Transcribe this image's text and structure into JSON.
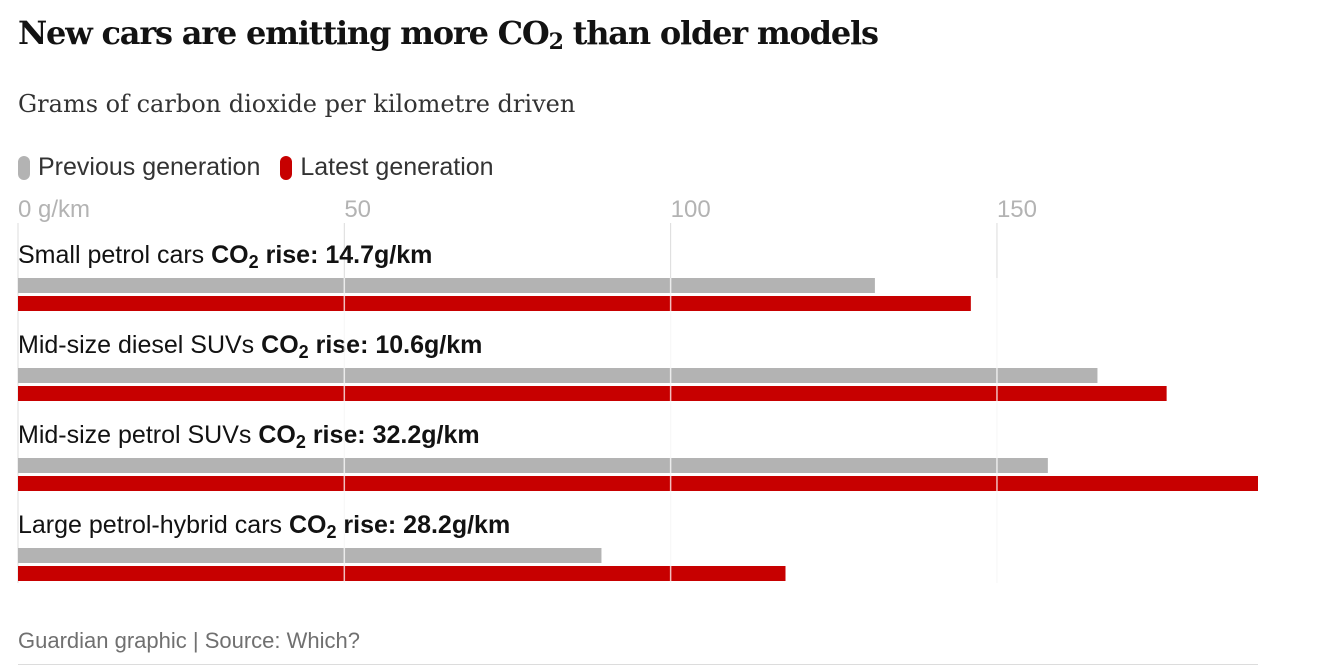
{
  "header": {
    "title_main": "New cars are emitting more CO",
    "title_sub": "2",
    "title_tail": " than older models",
    "subtitle": "Grams of carbon dioxide per kilometre driven"
  },
  "legend": {
    "previous": "Previous generation",
    "latest": "Latest generation"
  },
  "colors": {
    "previous": "#b3b3b3",
    "latest": "#c70000",
    "grid": "#dcdcdc",
    "tick": "#b3b3b3"
  },
  "chart_data": {
    "type": "bar",
    "orientation": "horizontal",
    "title": "New cars are emitting more CO2 than older models",
    "subtitle": "Grams of carbon dioxide per kilometre driven",
    "xlim": [
      0,
      190
    ],
    "ticks": [
      0,
      50,
      100,
      150
    ],
    "tick_labels": [
      "0 g/km",
      "50",
      "100",
      "150"
    ],
    "rise_prefix": "CO",
    "rise_sub": "2",
    "categories": [
      {
        "label": "Small petrol cars",
        "rise_text": " rise: 14.7g/km",
        "previous": 131.3,
        "latest": 146.0
      },
      {
        "label": "Mid-size diesel SUVs",
        "rise_text": " rise: 10.6g/km",
        "previous": 165.4,
        "latest": 176.0
      },
      {
        "label": "Mid-size petrol SUVs",
        "rise_text": " rise: 32.2g/km",
        "previous": 157.8,
        "latest": 190.0
      },
      {
        "label": "Large petrol-hybrid cars",
        "rise_text": " rise: 28.2g/km",
        "previous": 89.4,
        "latest": 117.6
      }
    ],
    "series": [
      {
        "name": "Previous generation",
        "values": [
          131.3,
          165.4,
          157.8,
          89.4
        ]
      },
      {
        "name": "Latest generation",
        "values": [
          146.0,
          176.0,
          190.0,
          117.6
        ]
      }
    ]
  },
  "footer": {
    "source": "Guardian graphic | Source: Which?"
  }
}
